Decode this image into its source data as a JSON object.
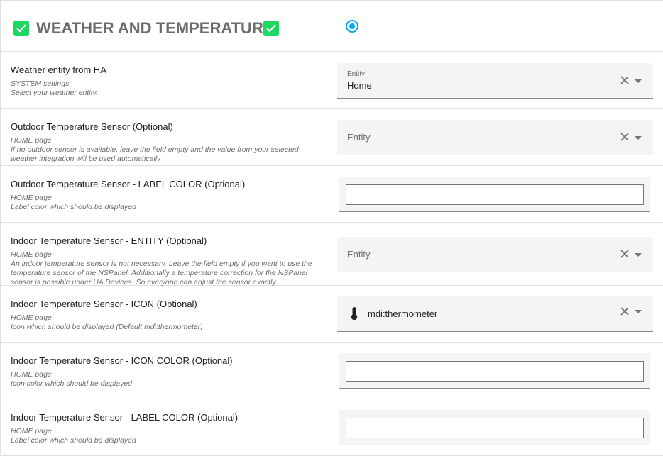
{
  "header": {
    "title": "WEATHER AND TEMPERATURE",
    "accent": "#1ed760",
    "radio_color": "#03a9f4"
  },
  "rows": [
    {
      "label": "Weather entity from HA",
      "sub": [
        "SYSTEM settings",
        "Select your weather entity."
      ],
      "field": {
        "type": "entity",
        "floating_label": "Entity",
        "value": "Home"
      }
    },
    {
      "label": "Outdoor Temperature Sensor (Optional)",
      "sub": [
        "HOME page",
        "If no outdoor sensor is available, leave the field empty and the value from your selected",
        "weather integration will be used automatically"
      ],
      "field": {
        "type": "entity",
        "placeholder": "Entity"
      }
    },
    {
      "label": "Outdoor Temperature Sensor - LABEL COLOR (Optional)",
      "sub": [
        "HOME page",
        "Label color which should be displayed"
      ],
      "field": {
        "type": "color",
        "value": ""
      }
    },
    {
      "label": "Indoor Temperature Sensor - ENTITY (Optional)",
      "sub": [
        "HOME page",
        "An indoor temperature sensor is not necessary. Leave the field empty if you want to use the",
        "temperature sensor of the NSPanel. Additionally a temperature correction for the NSPanel",
        "sensor is possible under HA Devices. So everyone can adjust the sensor exactly"
      ],
      "field": {
        "type": "entity",
        "placeholder": "Entity"
      }
    },
    {
      "label": "Indoor Temperature Sensor - ICON (Optional)",
      "sub": [
        "HOME page",
        "Icon which should be displayed (Default mdi:thermometer)"
      ],
      "field": {
        "type": "icon",
        "value": "mdi:thermometer",
        "icon": "thermometer-icon"
      }
    },
    {
      "label": "Indoor Temperature Sensor - ICON COLOR (Optional)",
      "sub": [
        "HOME page",
        "Icon color which should be displayed"
      ],
      "field": {
        "type": "color",
        "value": ""
      }
    },
    {
      "label": "Indoor Temperature Sensor - LABEL COLOR (Optional)",
      "sub": [
        "HOME page",
        "Label color which should be displayed"
      ],
      "field": {
        "type": "color",
        "value": ""
      }
    }
  ]
}
